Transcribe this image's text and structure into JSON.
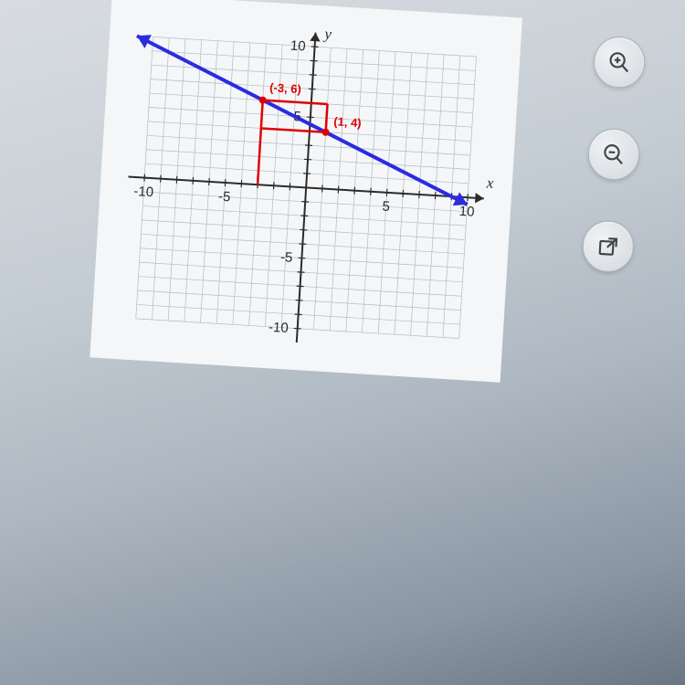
{
  "chart": {
    "type": "line",
    "xlim": [
      -11,
      11
    ],
    "ylim": [
      -11,
      11
    ],
    "tick_major": 5,
    "tick_minor": 1,
    "grid_color": "#b6bcc1",
    "axis_color": "#2b2b2b",
    "background_color": "#f4f6f8",
    "grid_stroke": 0.7,
    "axis_stroke": 2,
    "axis_labels": {
      "x": "x",
      "y": "y"
    },
    "major_ticks_x": [
      -10,
      -5,
      5,
      10
    ],
    "major_ticks_y": [
      -10,
      -5,
      5,
      10
    ],
    "tick_fontsize": 15,
    "line": {
      "color": "#2b2be0",
      "width": 4,
      "arrows_both": true,
      "points_through": [
        [
          -11,
          10
        ],
        [
          10,
          -0.5
        ]
      ]
    },
    "marked_points": [
      {
        "coord": [
          -3,
          6
        ],
        "label": "(-3, 6)",
        "color": "#e00000"
      },
      {
        "coord": [
          1,
          4
        ],
        "label": "(1, 4)",
        "color": "#e00000"
      }
    ],
    "annotation_lines": [
      {
        "from": [
          -3,
          6
        ],
        "to": [
          1,
          6
        ],
        "color": "#e00000",
        "width": 2.5
      },
      {
        "from": [
          1,
          6
        ],
        "to": [
          1,
          4
        ],
        "color": "#e00000",
        "width": 2.5
      },
      {
        "from": [
          -3,
          6
        ],
        "to": [
          -3,
          0
        ],
        "color": "#e00000",
        "width": 2.5
      },
      {
        "from": [
          -3,
          4
        ],
        "to": [
          1,
          4
        ],
        "color": "#e00000",
        "width": 2.5
      }
    ],
    "label_fontsize": 13,
    "label_fontweight": "bold",
    "label_color": "#e00000"
  },
  "controls": {
    "zoom_in": "zoom-in",
    "zoom_out": "zoom-out",
    "popout": "popout"
  }
}
